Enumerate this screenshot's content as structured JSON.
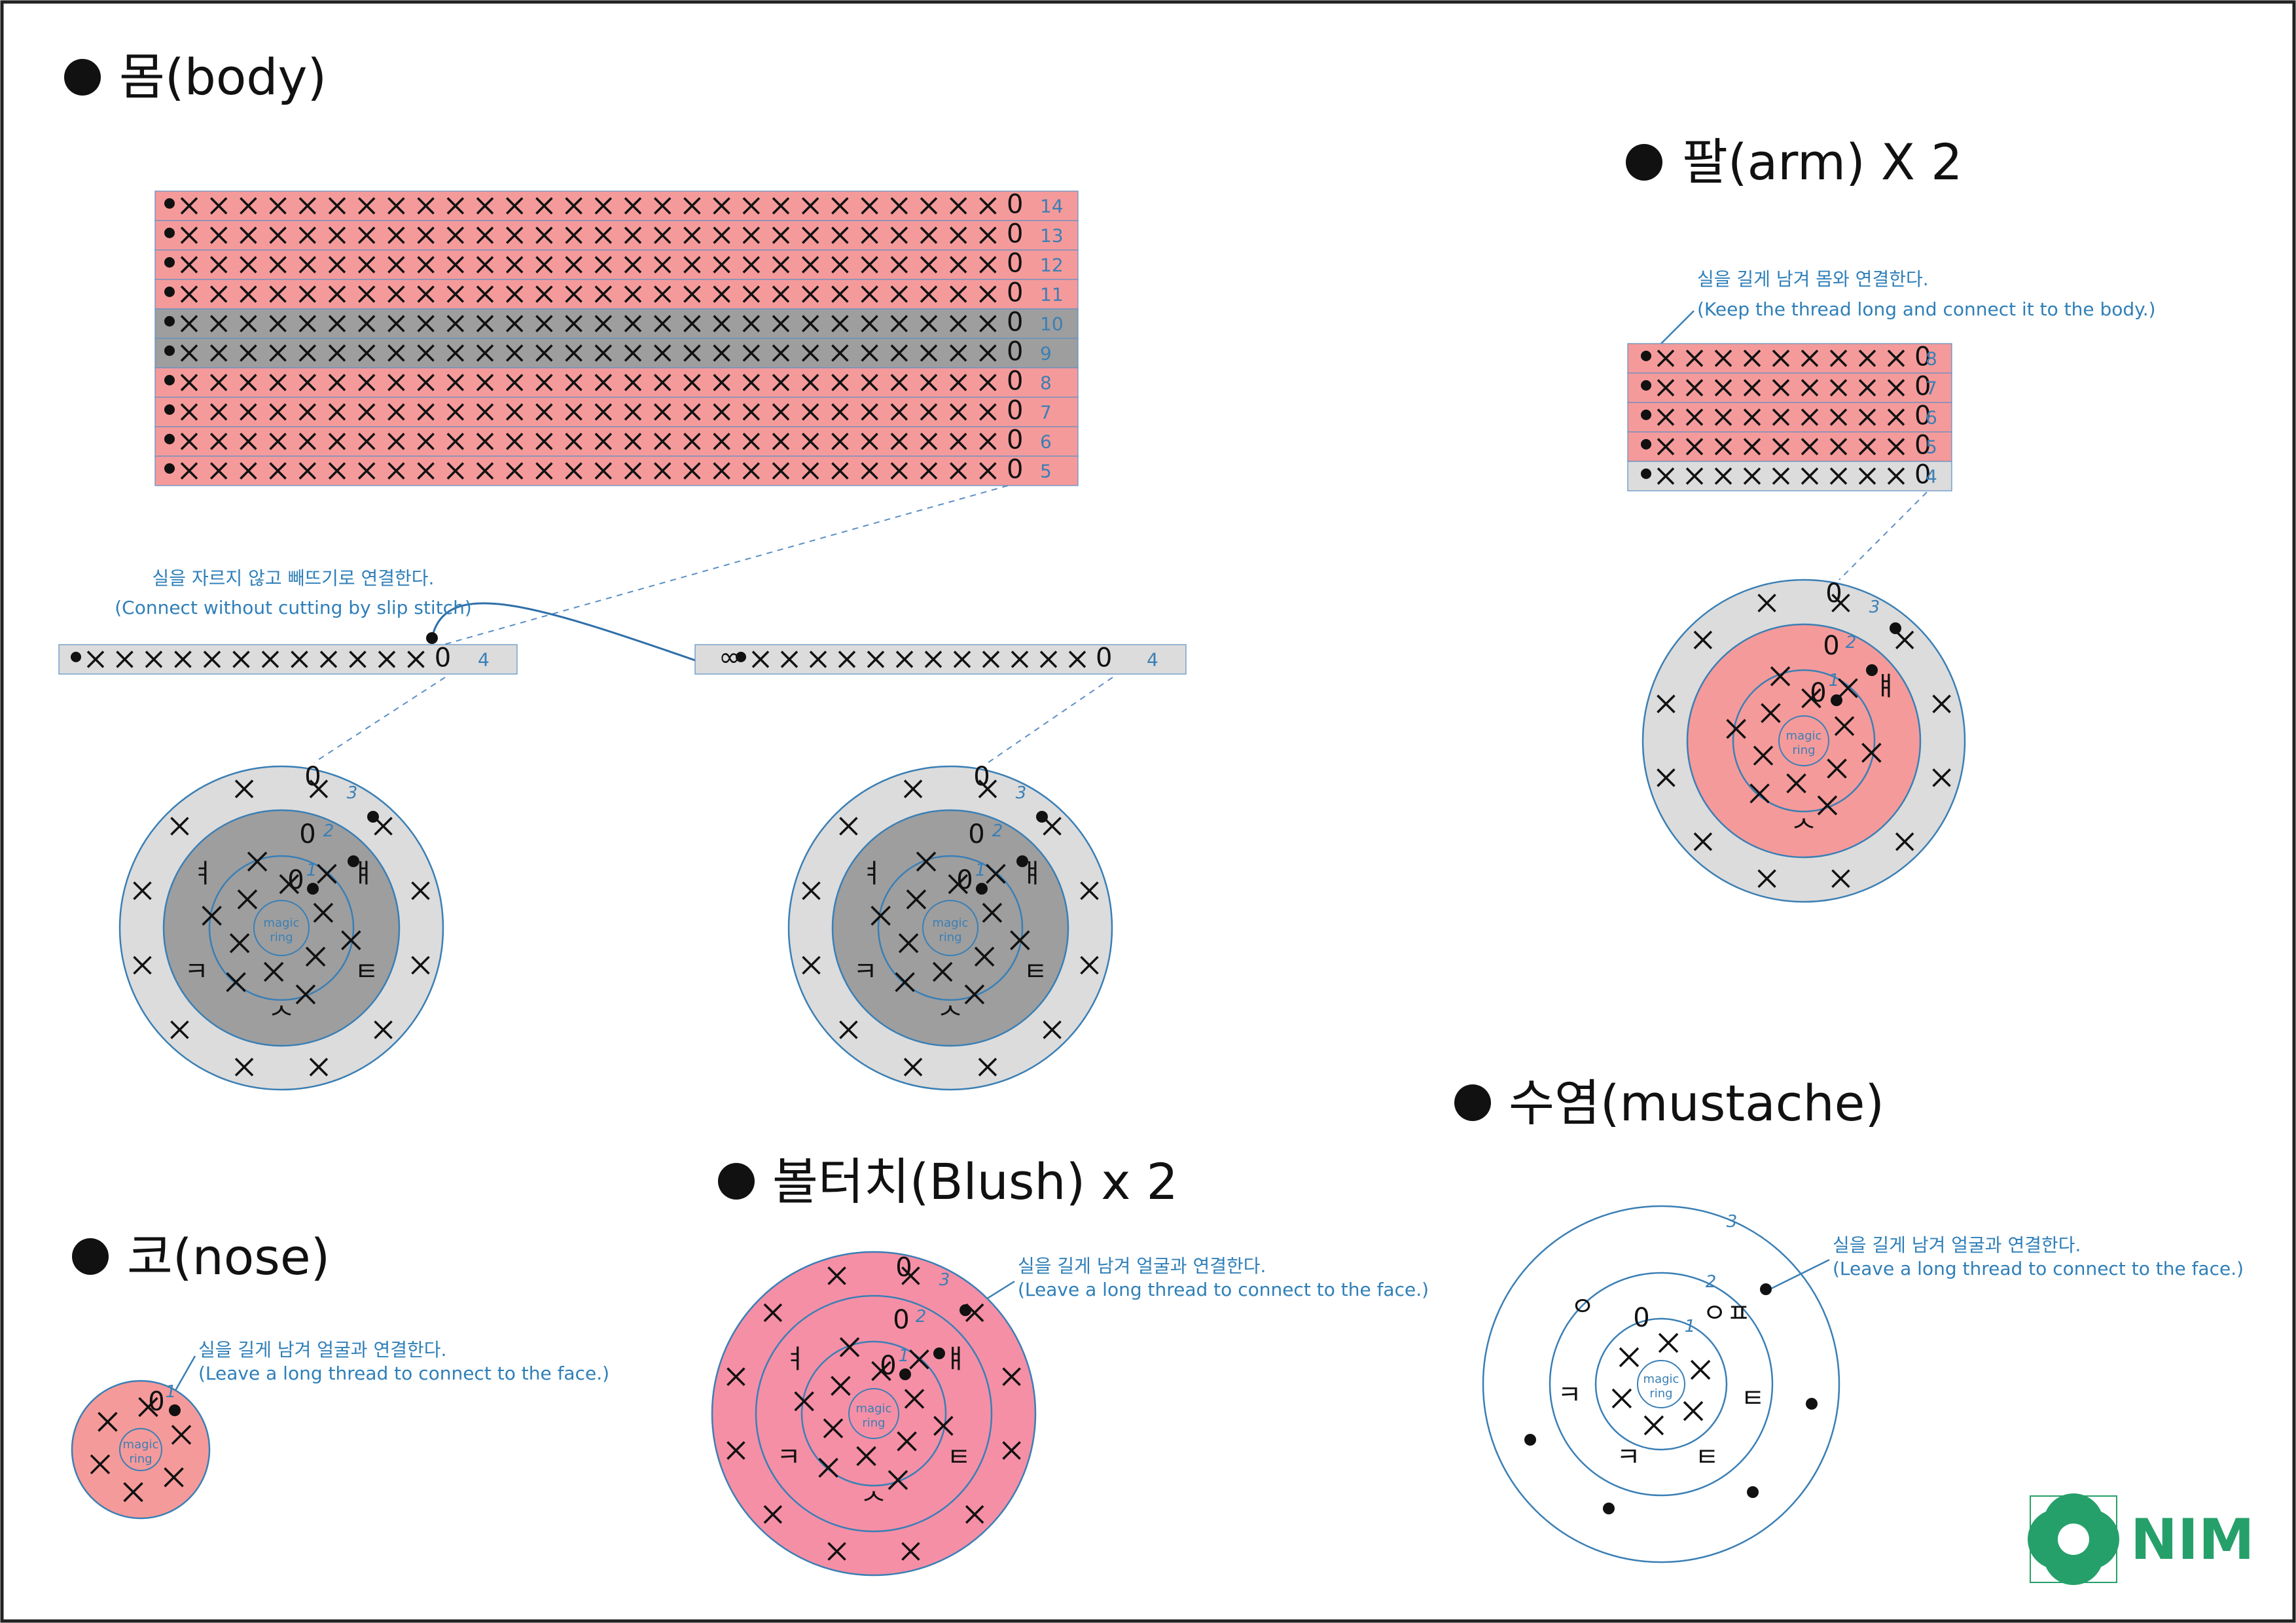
{
  "colors": {
    "pink_body": "#f59a9a",
    "gray_dark": "#9e9e9e",
    "gray_light": "#dcdcdc",
    "pink_blush": "#f58fa6",
    "line_blue": "#3a7fb5",
    "logo_green": "#26a06a"
  },
  "titles": {
    "body": "몸(body)",
    "arm": "팔(arm) X 2",
    "nose": "코(nose)",
    "blush": "볼터치(Blush) x 2",
    "mustache": "수염(mustache)"
  },
  "notes": {
    "body_ko": "실을 자르지 않고 빼뜨기로 연결한다.",
    "body_en": "(Connect without cutting by slip stitch)",
    "arm_ko": "실을 길게 남겨 몸와 연결한다.",
    "arm_en": "(Keep the thread long and connect it to the body.)",
    "nose_ko": "실을 길게 남겨 얼굴과 연결한다.",
    "nose_en": "(Leave a long thread to connect to the face.)",
    "blush_ko": "실을 길게 남겨 얼굴과 연결한다.",
    "blush_en": "(Leave a long thread to connect to the face.)",
    "mustache_ko": "실을 길게 남겨 얼굴과 연결한다.",
    "mustache_en": "(Leave a long thread to connect to the face.)"
  },
  "body_rows": [
    {
      "n": "14",
      "color": "pink"
    },
    {
      "n": "13",
      "color": "pink"
    },
    {
      "n": "12",
      "color": "pink"
    },
    {
      "n": "11",
      "color": "pink"
    },
    {
      "n": "10",
      "color": "gray"
    },
    {
      "n": "9",
      "color": "gray"
    },
    {
      "n": "8",
      "color": "pink"
    },
    {
      "n": "7",
      "color": "pink"
    },
    {
      "n": "6",
      "color": "pink"
    },
    {
      "n": "5",
      "color": "pink"
    }
  ],
  "body_left_row": "4",
  "body_right_row": "4",
  "arm_rows": [
    {
      "n": "8",
      "color": "pink"
    },
    {
      "n": "7",
      "color": "pink"
    },
    {
      "n": "6",
      "color": "pink"
    },
    {
      "n": "5",
      "color": "pink"
    },
    {
      "n": "4",
      "color": "light"
    }
  ],
  "magic_ring": [
    "magic",
    "ring"
  ],
  "round_labels": [
    "1",
    "2",
    "3"
  ],
  "logo": {
    "text": "NIM"
  }
}
